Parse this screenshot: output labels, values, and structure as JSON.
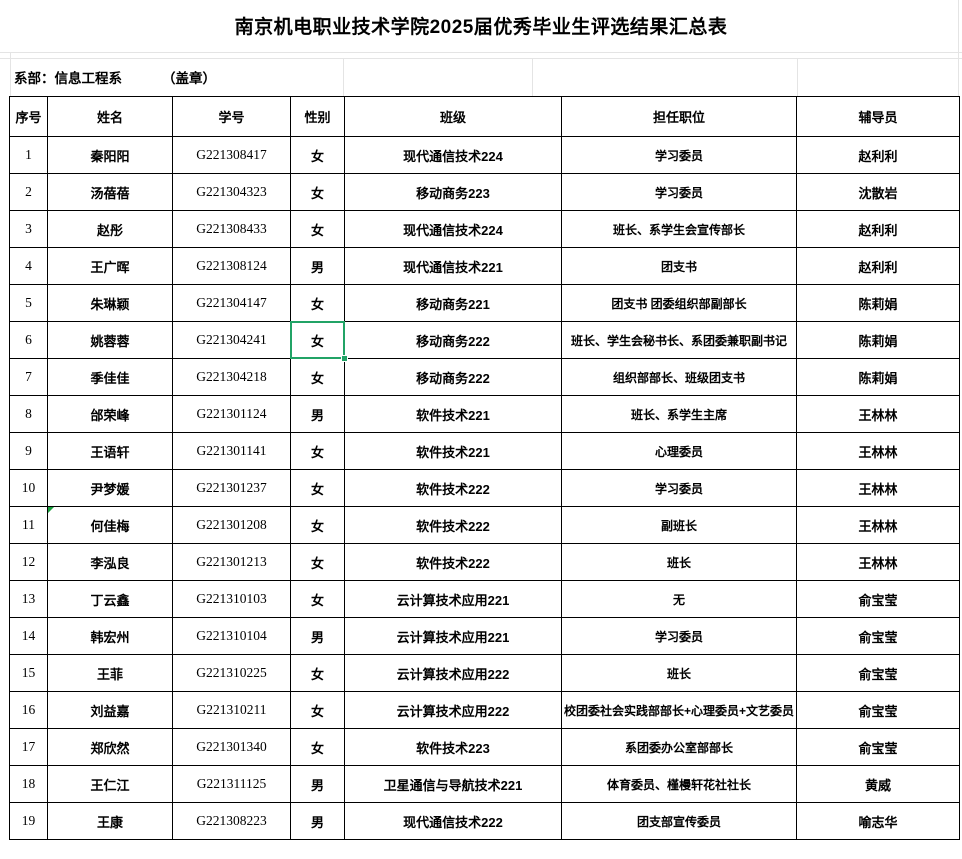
{
  "title": "南京机电职业技术学院2025届优秀毕业生评选结果汇总表",
  "dept": {
    "label": "系部：信息工程系",
    "stamp": "（盖章）"
  },
  "table": {
    "headers": [
      "序号",
      "姓名",
      "学号",
      "性别",
      "班级",
      "担任职位",
      "辅导员"
    ],
    "rows": [
      {
        "seq": "1",
        "name": "秦阳阳",
        "student_id": "G221308417",
        "gender": "女",
        "class": "现代通信技术224",
        "position": "学习委员",
        "counselor": "赵利利"
      },
      {
        "seq": "2",
        "name": "汤蓓蓓",
        "student_id": "G221304323",
        "gender": "女",
        "class": "移动商务223",
        "position": "学习委员",
        "counselor": "沈散岩"
      },
      {
        "seq": "3",
        "name": "赵彤",
        "student_id": "G221308433",
        "gender": "女",
        "class": "现代通信技术224",
        "position": "班长、系学生会宣传部长",
        "counselor": "赵利利"
      },
      {
        "seq": "4",
        "name": "王广晖",
        "student_id": "G221308124",
        "gender": "男",
        "class": "现代通信技术221",
        "position": "团支书",
        "counselor": "赵利利"
      },
      {
        "seq": "5",
        "name": "朱琳颖",
        "student_id": "G221304147",
        "gender": "女",
        "class": "移动商务221",
        "position": "团支书 团委组织部副部长",
        "counselor": "陈莉娟"
      },
      {
        "seq": "6",
        "name": "姚蓉蓉",
        "student_id": "G221304241",
        "gender": "女",
        "class": "移动商务222",
        "position": "班长、学生会秘书长、系团委兼职副书记",
        "counselor": "陈莉娟"
      },
      {
        "seq": "7",
        "name": "季佳佳",
        "student_id": "G221304218",
        "gender": "女",
        "class": "移动商务222",
        "position": "组织部部长、班级团支书",
        "counselor": "陈莉娟"
      },
      {
        "seq": "8",
        "name": "邰荣峰",
        "student_id": "G221301124",
        "gender": "男",
        "class": "软件技术221",
        "position": "班长、系学生主席",
        "counselor": "王林林"
      },
      {
        "seq": "9",
        "name": "王语轩",
        "student_id": "G221301141",
        "gender": "女",
        "class": "软件技术221",
        "position": "心理委员",
        "counselor": "王林林"
      },
      {
        "seq": "10",
        "name": "尹梦媛",
        "student_id": "G221301237",
        "gender": "女",
        "class": "软件技术222",
        "position": "学习委员",
        "counselor": "王林林"
      },
      {
        "seq": "11",
        "name": "何佳梅",
        "student_id": "G221301208",
        "gender": "女",
        "class": "软件技术222",
        "position": "副班长",
        "counselor": "王林林"
      },
      {
        "seq": "12",
        "name": "李泓良",
        "student_id": "G221301213",
        "gender": "女",
        "class": "软件技术222",
        "position": "班长",
        "counselor": "王林林"
      },
      {
        "seq": "13",
        "name": "丁云鑫",
        "student_id": "G221310103",
        "gender": "女",
        "class": "云计算技术应用221",
        "position": "无",
        "counselor": "俞宝莹"
      },
      {
        "seq": "14",
        "name": "韩宏州",
        "student_id": "G221310104",
        "gender": "男",
        "class": "云计算技术应用221",
        "position": "学习委员",
        "counselor": "俞宝莹"
      },
      {
        "seq": "15",
        "name": "王菲",
        "student_id": "G221310225",
        "gender": "女",
        "class": "云计算技术应用222",
        "position": "班长",
        "counselor": "俞宝莹"
      },
      {
        "seq": "16",
        "name": "刘益嘉",
        "student_id": "G221310211",
        "gender": "女",
        "class": "云计算技术应用222",
        "position": "校团委社会实践部部长+心理委员+文艺委员",
        "counselor": "俞宝莹"
      },
      {
        "seq": "17",
        "name": "郑欣然",
        "student_id": "G221301340",
        "gender": "女",
        "class": "软件技术223",
        "position": "系团委办公室部部长",
        "counselor": "俞宝莹"
      },
      {
        "seq": "18",
        "name": "王仁江",
        "student_id": "G221311125",
        "gender": "男",
        "class": "卫星通信与导航技术221",
        "position": "体育委员、槿槾轩花社社长",
        "counselor": "黄威"
      },
      {
        "seq": "19",
        "name": "王康",
        "student_id": "G221308223",
        "gender": "男",
        "class": "现代通信技术222",
        "position": "团支部宣传委员",
        "counselor": "喻志华"
      }
    ]
  },
  "selection": {
    "row": 6,
    "column_key": "gender",
    "value": "女",
    "accent_color": "#21a366"
  },
  "indicator": {
    "row": 11,
    "column_key": "name",
    "icon": "error-check-triangle",
    "color": "#18a03c"
  }
}
